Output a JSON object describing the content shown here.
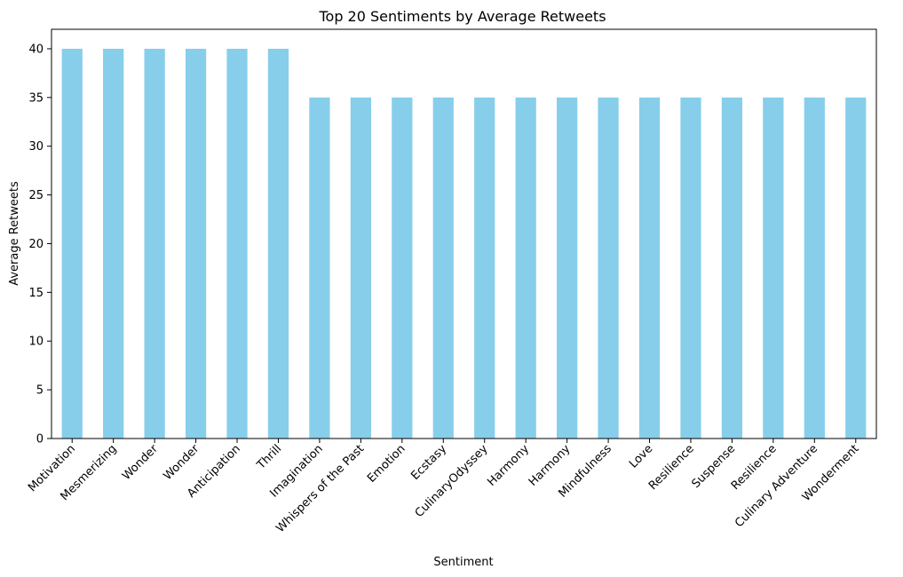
{
  "chart_data": {
    "type": "bar",
    "title": "Top 20 Sentiments by Average Retweets",
    "xlabel": "Sentiment",
    "ylabel": "Average Retweets",
    "categories": [
      "Motivation",
      "Mesmerizing",
      "Wonder",
      "Wonder",
      "Anticipation",
      "Thrill",
      "Imagination",
      "Whispers of the Past",
      "Emotion",
      "Ecstasy",
      "CulinaryOdyssey",
      "Harmony",
      "Harmony",
      "Mindfulness",
      "Love",
      "Resilience",
      "Suspense",
      "Resilience",
      "Culinary Adventure",
      "Wonderment"
    ],
    "values": [
      40,
      40,
      40,
      40,
      40,
      40,
      35,
      35,
      35,
      35,
      35,
      35,
      35,
      35,
      35,
      35,
      35,
      35,
      35,
      35
    ],
    "ylim": [
      0,
      42
    ],
    "yticks": [
      0,
      5,
      10,
      15,
      20,
      25,
      30,
      35,
      40
    ],
    "bar_color": "#87ceeb",
    "grid": false,
    "legend": "none"
  }
}
